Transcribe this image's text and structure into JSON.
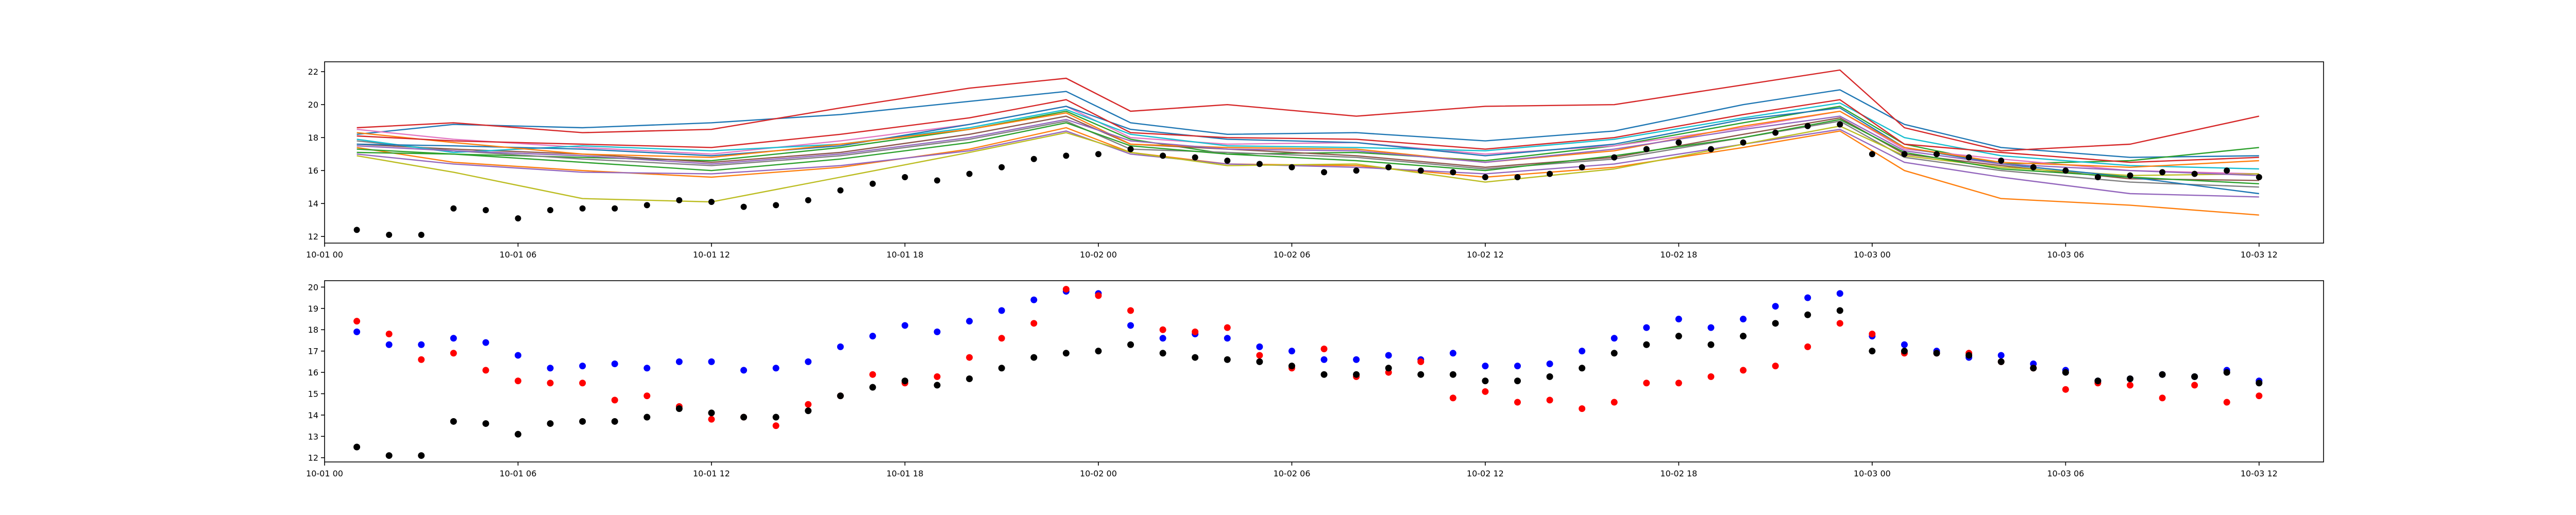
{
  "chart_data": [
    {
      "type": "line",
      "title": "",
      "xlabel": "",
      "ylabel": "",
      "x_range": [
        "2024-10-01 00:00",
        "2024-10-03 14:00"
      ],
      "ylim": [
        11.6,
        22.6
      ],
      "grid": false,
      "x_tick_labels": [
        "10-01 00",
        "10-01 06",
        "10-01 12",
        "10-01 18",
        "10-02 00",
        "10-02 06",
        "10-02 12",
        "10-02 18",
        "10-03 00",
        "10-03 06",
        "10-03 12"
      ],
      "y_ticks": [
        12,
        14,
        16,
        18,
        20,
        22
      ],
      "series_times": [
        "10-01 01:00",
        "10-01 04:00",
        "10-01 08:00",
        "10-01 12:00",
        "10-01 16:00",
        "10-01 20:00",
        "10-01 23:00",
        "10-02 01:00",
        "10-02 04:00",
        "10-02 08:00",
        "10-02 12:00",
        "10-02 16:00",
        "10-02 20:00",
        "10-02 23:00",
        "10-03 01:00",
        "10-03 04:00",
        "10-03 08:00",
        "10-03 12:00"
      ],
      "series": [
        {
          "color": "#1f77b4",
          "values": [
            18.2,
            18.8,
            18.6,
            18.9,
            19.4,
            20.2,
            20.8,
            18.9,
            18.2,
            18.3,
            17.8,
            18.4,
            20.0,
            20.9,
            18.8,
            17.4,
            16.8,
            16.9
          ]
        },
        {
          "color": "#ff7f0e",
          "values": [
            17.4,
            16.5,
            16.0,
            15.6,
            16.2,
            17.3,
            18.6,
            17.1,
            16.4,
            16.3,
            15.6,
            16.2,
            17.4,
            18.4,
            16.0,
            14.3,
            13.9,
            13.3
          ]
        },
        {
          "color": "#2ca02c",
          "values": [
            17.1,
            17.0,
            16.8,
            16.6,
            17.4,
            18.5,
            19.6,
            17.9,
            17.0,
            17.1,
            16.6,
            17.5,
            18.9,
            19.9,
            17.6,
            16.4,
            16.6,
            17.4
          ]
        },
        {
          "color": "#d62728",
          "values": [
            18.6,
            18.9,
            18.3,
            18.5,
            19.8,
            21.0,
            21.6,
            19.6,
            20.0,
            19.3,
            19.9,
            20.0,
            21.2,
            22.1,
            18.6,
            17.2,
            17.6,
            19.3
          ]
        },
        {
          "color": "#9467bd",
          "values": [
            17.0,
            16.4,
            15.9,
            15.8,
            16.3,
            17.2,
            18.4,
            17.0,
            16.4,
            16.2,
            15.8,
            16.4,
            17.6,
            18.5,
            16.5,
            15.6,
            14.6,
            14.4
          ]
        },
        {
          "color": "#8c564b",
          "values": [
            17.6,
            17.3,
            17.0,
            16.5,
            17.1,
            18.2,
            19.3,
            17.6,
            17.3,
            16.9,
            16.2,
            16.8,
            18.2,
            19.2,
            17.0,
            16.3,
            15.5,
            15.4
          ]
        },
        {
          "color": "#e377c2",
          "values": [
            18.5,
            17.9,
            17.4,
            17.0,
            17.8,
            18.8,
            19.9,
            18.0,
            17.6,
            17.7,
            17.0,
            17.5,
            18.6,
            19.6,
            17.3,
            16.7,
            16.0,
            15.8
          ]
        },
        {
          "color": "#7f7f7f",
          "values": [
            17.8,
            17.2,
            16.7,
            16.3,
            16.9,
            17.9,
            19.0,
            17.3,
            17.1,
            16.8,
            16.1,
            16.7,
            18.0,
            19.0,
            16.8,
            16.0,
            15.3,
            15.0
          ]
        },
        {
          "color": "#bcbd22",
          "values": [
            16.9,
            15.9,
            14.3,
            14.1,
            15.6,
            17.1,
            18.3,
            17.1,
            16.3,
            16.4,
            15.3,
            16.1,
            17.6,
            18.7,
            16.9,
            16.2,
            15.7,
            15.8
          ]
        },
        {
          "color": "#17becf",
          "values": [
            17.9,
            17.1,
            17.5,
            17.2,
            17.6,
            18.6,
            19.7,
            18.2,
            17.5,
            17.4,
            17.2,
            17.9,
            19.2,
            20.1,
            18.0,
            16.9,
            16.3,
            16.1
          ]
        },
        {
          "color": "#1f77b4",
          "values": [
            17.6,
            17.5,
            17.3,
            16.9,
            17.5,
            18.8,
            19.9,
            18.5,
            17.9,
            17.7,
            16.9,
            17.6,
            19.1,
            19.8,
            17.4,
            16.4,
            15.6,
            14.6
          ]
        },
        {
          "color": "#ff7f0e",
          "values": [
            18.3,
            17.7,
            17.0,
            16.8,
            17.6,
            18.5,
            19.5,
            17.6,
            17.4,
            17.3,
            16.5,
            17.2,
            18.7,
            19.6,
            17.4,
            16.5,
            16.2,
            16.6
          ]
        },
        {
          "color": "#2ca02c",
          "values": [
            17.3,
            17.0,
            16.5,
            16.0,
            16.7,
            17.7,
            18.9,
            17.5,
            17.0,
            16.6,
            16.0,
            16.9,
            18.0,
            19.1,
            17.1,
            16.1,
            15.6,
            15.2
          ]
        },
        {
          "color": "#d62728",
          "values": [
            18.1,
            17.8,
            17.6,
            17.4,
            18.2,
            19.2,
            20.3,
            18.3,
            18.0,
            17.9,
            17.3,
            18.0,
            19.4,
            20.3,
            17.6,
            17.1,
            16.5,
            16.8
          ]
        },
        {
          "color": "#9467bd",
          "values": [
            17.5,
            17.2,
            16.9,
            16.4,
            17.0,
            18.0,
            19.1,
            17.8,
            17.3,
            17.2,
            16.5,
            17.3,
            18.5,
            19.3,
            17.2,
            16.4,
            16.0,
            15.7
          ]
        }
      ],
      "observed_points": [
        {
          "x": "10-01 01:00",
          "y": 12.4
        },
        {
          "x": "10-01 02:00",
          "y": 12.1
        },
        {
          "x": "10-01 03:00",
          "y": 12.1
        },
        {
          "x": "10-01 04:00",
          "y": 13.7
        },
        {
          "x": "10-01 05:00",
          "y": 13.6
        },
        {
          "x": "10-01 06:00",
          "y": 13.1
        },
        {
          "x": "10-01 07:00",
          "y": 13.6
        },
        {
          "x": "10-01 08:00",
          "y": 13.7
        },
        {
          "x": "10-01 09:00",
          "y": 13.7
        },
        {
          "x": "10-01 10:00",
          "y": 13.9
        },
        {
          "x": "10-01 11:00",
          "y": 14.2
        },
        {
          "x": "10-01 12:00",
          "y": 14.1
        },
        {
          "x": "10-01 13:00",
          "y": 13.8
        },
        {
          "x": "10-01 14:00",
          "y": 13.9
        },
        {
          "x": "10-01 15:00",
          "y": 14.2
        },
        {
          "x": "10-01 16:00",
          "y": 14.8
        },
        {
          "x": "10-01 17:00",
          "y": 15.2
        },
        {
          "x": "10-01 18:00",
          "y": 15.6
        },
        {
          "x": "10-01 19:00",
          "y": 15.4
        },
        {
          "x": "10-01 20:00",
          "y": 15.8
        },
        {
          "x": "10-01 21:00",
          "y": 16.2
        },
        {
          "x": "10-01 22:00",
          "y": 16.7
        },
        {
          "x": "10-01 23:00",
          "y": 16.9
        },
        {
          "x": "10-02 00:00",
          "y": 17.0
        },
        {
          "x": "10-02 01:00",
          "y": 17.3
        },
        {
          "x": "10-02 02:00",
          "y": 16.9
        },
        {
          "x": "10-02 03:00",
          "y": 16.8
        },
        {
          "x": "10-02 04:00",
          "y": 16.6
        },
        {
          "x": "10-02 05:00",
          "y": 16.4
        },
        {
          "x": "10-02 06:00",
          "y": 16.2
        },
        {
          "x": "10-02 07:00",
          "y": 15.9
        },
        {
          "x": "10-02 08:00",
          "y": 16.0
        },
        {
          "x": "10-02 09:00",
          "y": 16.2
        },
        {
          "x": "10-02 10:00",
          "y": 16.0
        },
        {
          "x": "10-02 11:00",
          "y": 15.9
        },
        {
          "x": "10-02 12:00",
          "y": 15.6
        },
        {
          "x": "10-02 13:00",
          "y": 15.6
        },
        {
          "x": "10-02 14:00",
          "y": 15.8
        },
        {
          "x": "10-02 15:00",
          "y": 16.2
        },
        {
          "x": "10-02 16:00",
          "y": 16.8
        },
        {
          "x": "10-02 17:00",
          "y": 17.3
        },
        {
          "x": "10-02 18:00",
          "y": 17.7
        },
        {
          "x": "10-02 19:00",
          "y": 17.3
        },
        {
          "x": "10-02 20:00",
          "y": 17.7
        },
        {
          "x": "10-02 21:00",
          "y": 18.3
        },
        {
          "x": "10-02 22:00",
          "y": 18.7
        },
        {
          "x": "10-02 23:00",
          "y": 18.8
        },
        {
          "x": "10-03 00:00",
          "y": 17.0
        },
        {
          "x": "10-03 01:00",
          "y": 17.0
        },
        {
          "x": "10-03 02:00",
          "y": 17.0
        },
        {
          "x": "10-03 03:00",
          "y": 16.8
        },
        {
          "x": "10-03 04:00",
          "y": 16.6
        },
        {
          "x": "10-03 05:00",
          "y": 16.2
        },
        {
          "x": "10-03 06:00",
          "y": 16.0
        },
        {
          "x": "10-03 07:00",
          "y": 15.6
        },
        {
          "x": "10-03 08:00",
          "y": 15.7
        },
        {
          "x": "10-03 09:00",
          "y": 15.9
        },
        {
          "x": "10-03 10:00",
          "y": 15.8
        },
        {
          "x": "10-03 11:00",
          "y": 16.0
        },
        {
          "x": "10-03 12:00",
          "y": 15.6
        }
      ]
    },
    {
      "type": "scatter",
      "title": "",
      "xlabel": "",
      "ylabel": "",
      "x_range": [
        "2024-10-01 00:00",
        "2024-10-03 14:00"
      ],
      "ylim": [
        11.8,
        20.3
      ],
      "grid": false,
      "x_tick_labels": [
        "10-01 00",
        "10-01 06",
        "10-01 12",
        "10-01 18",
        "10-02 00",
        "10-02 06",
        "10-02 12",
        "10-02 18",
        "10-03 00",
        "10-03 06",
        "10-03 12"
      ],
      "y_ticks": [
        12,
        13,
        14,
        15,
        16,
        17,
        18,
        19,
        20
      ],
      "x": [
        "10-01 01:00",
        "10-01 02:00",
        "10-01 03:00",
        "10-01 04:00",
        "10-01 05:00",
        "10-01 06:00",
        "10-01 07:00",
        "10-01 08:00",
        "10-01 09:00",
        "10-01 10:00",
        "10-01 11:00",
        "10-01 12:00",
        "10-01 13:00",
        "10-01 14:00",
        "10-01 15:00",
        "10-01 16:00",
        "10-01 17:00",
        "10-01 18:00",
        "10-01 19:00",
        "10-01 20:00",
        "10-01 21:00",
        "10-01 22:00",
        "10-01 23:00",
        "10-02 00:00",
        "10-02 01:00",
        "10-02 02:00",
        "10-02 03:00",
        "10-02 04:00",
        "10-02 05:00",
        "10-02 06:00",
        "10-02 07:00",
        "10-02 08:00",
        "10-02 09:00",
        "10-02 10:00",
        "10-02 11:00",
        "10-02 12:00",
        "10-02 13:00",
        "10-02 14:00",
        "10-02 15:00",
        "10-02 16:00",
        "10-02 17:00",
        "10-02 18:00",
        "10-02 19:00",
        "10-02 20:00",
        "10-02 21:00",
        "10-02 22:00",
        "10-02 23:00",
        "10-03 00:00",
        "10-03 01:00",
        "10-03 02:00",
        "10-03 03:00",
        "10-03 04:00",
        "10-03 05:00",
        "10-03 06:00",
        "10-03 07:00",
        "10-03 08:00",
        "10-03 09:00",
        "10-03 10:00",
        "10-03 11:00",
        "10-03 12:00"
      ],
      "series": [
        {
          "color": "#0000ff",
          "values": [
            17.9,
            17.3,
            17.3,
            17.6,
            17.4,
            16.8,
            16.2,
            16.3,
            16.4,
            16.2,
            16.5,
            16.5,
            16.1,
            16.2,
            16.5,
            17.2,
            17.7,
            18.2,
            17.9,
            18.4,
            18.9,
            19.4,
            19.8,
            19.7,
            18.2,
            17.6,
            17.8,
            17.6,
            17.2,
            17.0,
            16.6,
            16.6,
            16.8,
            16.6,
            16.9,
            16.3,
            16.3,
            16.4,
            17.0,
            17.6,
            18.1,
            18.5,
            18.1,
            18.5,
            19.1,
            19.5,
            19.7,
            17.7,
            17.3,
            17.0,
            16.7,
            16.8,
            16.4,
            16.1,
            15.6,
            15.7,
            15.9,
            15.8,
            16.1,
            15.6
          ]
        },
        {
          "color": "#ff0000",
          "values": [
            18.4,
            17.8,
            16.6,
            16.9,
            16.1,
            15.6,
            15.5,
            15.5,
            14.7,
            14.9,
            14.4,
            13.8,
            13.9,
            13.5,
            14.5,
            14.9,
            15.9,
            15.5,
            15.8,
            16.7,
            17.6,
            18.3,
            19.9,
            19.6,
            18.9,
            18.0,
            17.9,
            18.1,
            16.8,
            16.2,
            17.1,
            15.8,
            16.0,
            16.5,
            14.8,
            15.1,
            14.6,
            14.7,
            14.3,
            14.6,
            15.5,
            15.5,
            15.8,
            16.1,
            16.3,
            17.2,
            18.3,
            17.8,
            16.9,
            16.9,
            16.9,
            16.5,
            16.2,
            15.2,
            15.5,
            15.4,
            14.8,
            15.4,
            14.6,
            14.9
          ]
        },
        {
          "color": "#000000",
          "values": [
            12.5,
            12.1,
            12.1,
            13.7,
            13.6,
            13.1,
            13.6,
            13.7,
            13.7,
            13.9,
            14.3,
            14.1,
            13.9,
            13.9,
            14.2,
            14.9,
            15.3,
            15.6,
            15.4,
            15.7,
            16.2,
            16.7,
            16.9,
            17.0,
            17.3,
            16.9,
            16.7,
            16.6,
            16.5,
            16.3,
            15.9,
            15.9,
            16.2,
            15.9,
            15.9,
            15.6,
            15.6,
            15.8,
            16.2,
            16.9,
            17.3,
            17.7,
            17.3,
            17.7,
            18.3,
            18.7,
            18.9,
            17.0,
            17.0,
            16.9,
            16.8,
            16.5,
            16.2,
            16.0,
            15.6,
            15.7,
            15.9,
            15.8,
            16.0,
            15.5
          ]
        }
      ]
    }
  ]
}
